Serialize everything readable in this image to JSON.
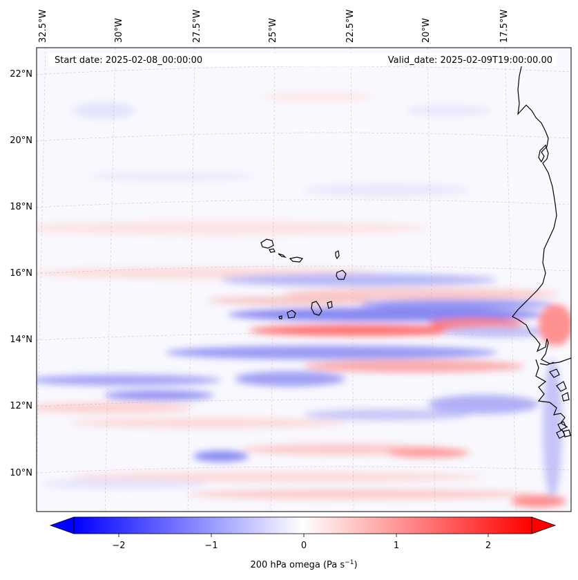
{
  "map": {
    "start_label": "Start date: 2025-02-08_00:00:00",
    "valid_label": "Valid_date: 2025-02-09T19:00:00.00",
    "lon_labels": [
      "32.5°W",
      "30°W",
      "27.5°W",
      "25°W",
      "22.5°W",
      "20°W",
      "17.5°W"
    ],
    "lat_labels": [
      "22°N",
      "20°N",
      "18°N",
      "16°N",
      "14°N",
      "12°N",
      "10°N"
    ],
    "islands": [
      "Santo Antão",
      "São Vicente",
      "São Nicolau",
      "Sal",
      "Boa Vista",
      "Maio",
      "Santiago",
      "Fogo",
      "Brava"
    ],
    "coastline": "West Africa (Mauritania, Senegal, Gambia, Guinea-Bissau, Guinea)"
  },
  "colorbar": {
    "ticks": [
      "−2",
      "−1",
      "0",
      "1",
      "2"
    ],
    "tick_values": [
      -2,
      -1,
      0,
      1,
      2
    ],
    "vmin": -2.6,
    "vmax": 2.6,
    "label_main": "200 hPa omega (Pa s",
    "label_exp": "−1",
    "label_end": ")",
    "colormap": "bwr",
    "low_color": "#0000ff",
    "mid_color": "#ffffff",
    "high_color": "#ff0000"
  }
}
